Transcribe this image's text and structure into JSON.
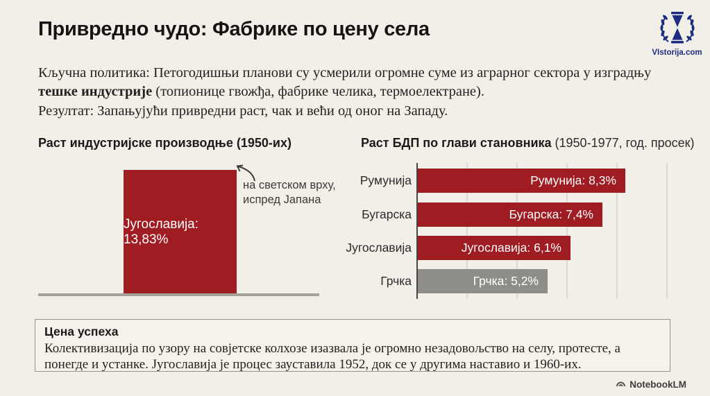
{
  "page": {
    "title": "Привредно чудо: Фабрике по цену села",
    "background": "#f2efe9"
  },
  "logo": {
    "text": "VIstorija.com",
    "color": "#1e2c80",
    "icon": "hourglass-laurel-icon"
  },
  "intro": {
    "part1": "Кључна политика: Петогодишњи планови су усмерили огромне суме из аграрног сектора у изградњу ",
    "bold": "тешке индустрије",
    "part2": " (топионице гвожђа, фабрике челика, термоелектране).",
    "result": "Резултат: Запањујући привредни раст, чак и већи од оног на Западу."
  },
  "chart_data": [
    {
      "type": "bar",
      "orientation": "vertical",
      "title": "Раст индустријске производње (1950-их)",
      "categories": [
        "Југославија"
      ],
      "values": [
        13.83
      ],
      "bar_label": "Југославија: 13,83%",
      "bar_color": "#9e1c22",
      "baseline_color": "#a2a19c",
      "annotation": {
        "line1": "на светском врху,",
        "line2": "испред Јапана"
      },
      "grid": false,
      "legend": "none"
    },
    {
      "type": "bar",
      "orientation": "horizontal",
      "title_bold": "Раст БДП по глави становника",
      "title_rest": " (1950-1977, год. просек)",
      "categories": [
        "Румунија",
        "Бугарска",
        "Југославија",
        "Грчка"
      ],
      "values": [
        8.3,
        7.4,
        6.1,
        5.2
      ],
      "bar_labels": [
        "Румунија: 8,3%",
        "Бугарска: 7,4%",
        "Југославија: 6,1%",
        "Грчка: 5,2%"
      ],
      "bar_colors": [
        "#9e1c22",
        "#9e1c22",
        "#9e1c22",
        "#8d8d8a"
      ],
      "xlim": [
        0,
        10.7
      ],
      "gridline_step": 2,
      "grid": true,
      "legend": "none"
    }
  ],
  "cost_box": {
    "heading": "Цена успеха",
    "body": "Колективизација по узору на совјетске колхозе изазвала је огромно незадовољство на селу, протесте, а понегде и устанке. Југославија је процес зауставила 1952, док се у другима наставио и 1960-их."
  },
  "footer": {
    "brand": "NotebookLM"
  }
}
